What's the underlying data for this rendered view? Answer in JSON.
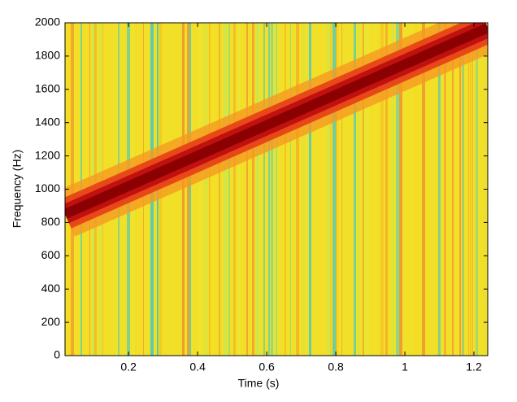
{
  "chart_data": {
    "type": "spectrogram",
    "xlabel": "Time (s)",
    "ylabel": "Frequency (Hz)",
    "xlim": [
      0.016,
      1.24
    ],
    "xticks": [
      0.2,
      0.4,
      0.6,
      0.8,
      1,
      1.2
    ],
    "ylim": [
      0,
      2000
    ],
    "yticks": [
      0,
      200,
      400,
      600,
      800,
      1000,
      1200,
      1400,
      1600,
      1800,
      2000
    ],
    "series": [
      {
        "color": "#8b0000",
        "x": [
          0.016,
          1.24
        ],
        "values": [
          850,
          1970
        ]
      }
    ]
  }
}
